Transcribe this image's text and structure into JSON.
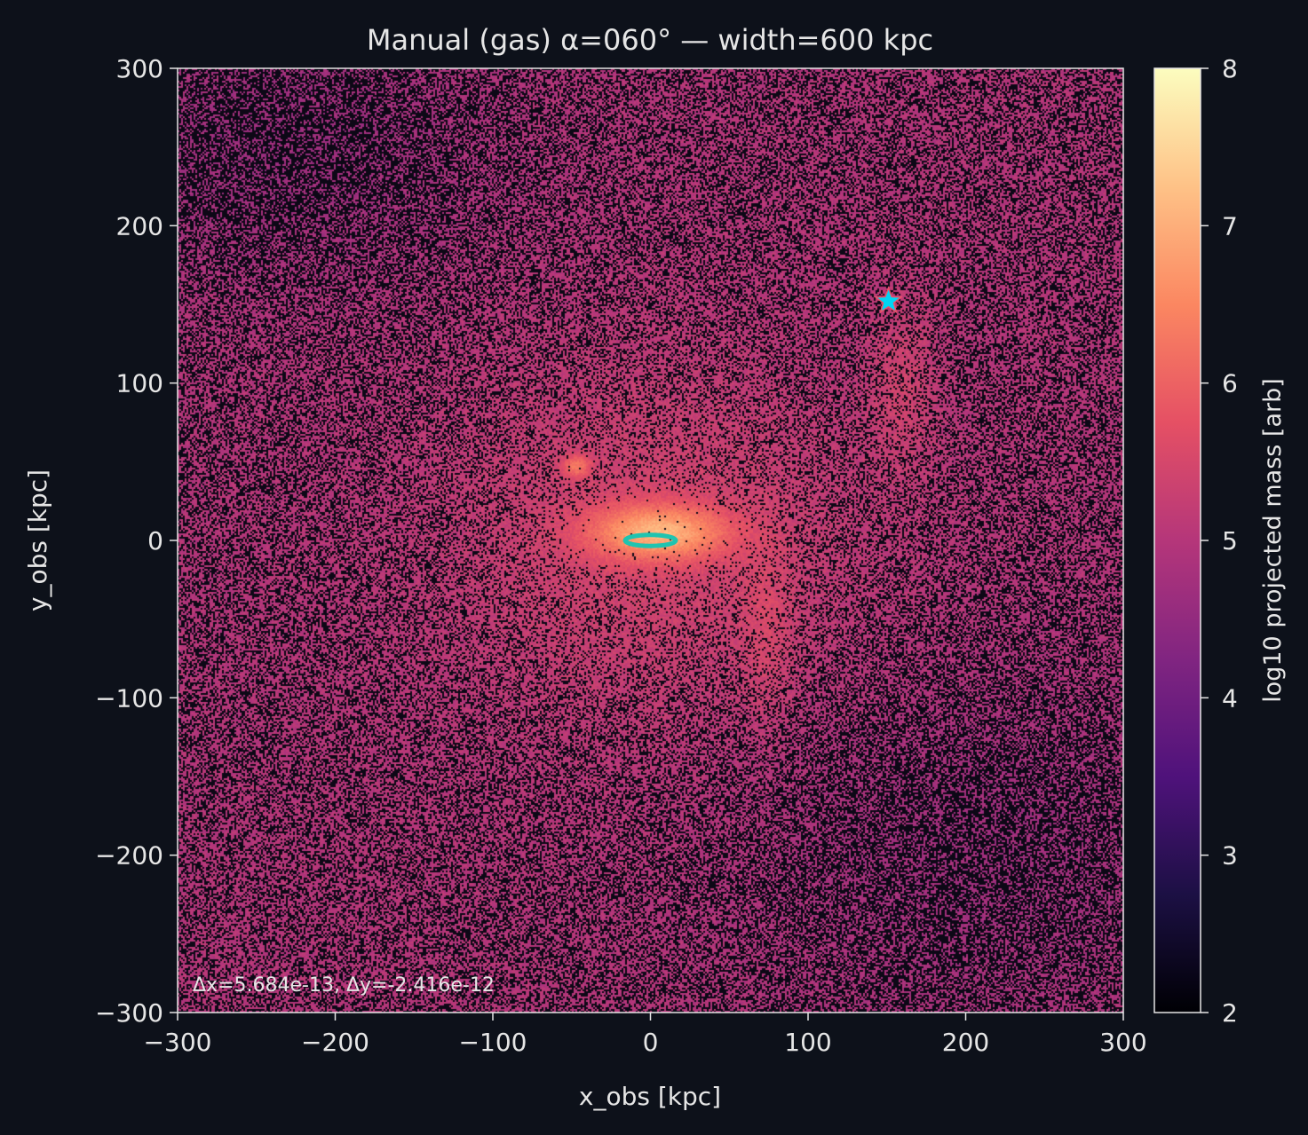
{
  "chart_data": {
    "type": "heatmap",
    "title": "Manual (gas)  α=060°  —  width=600 kpc",
    "xlabel": "x_obs [kpc]",
    "ylabel": "y_obs [kpc]",
    "xlim": [
      -300,
      300
    ],
    "ylim": [
      -300,
      300
    ],
    "xticks": [
      -300,
      -200,
      -100,
      0,
      100,
      200,
      300
    ],
    "yticks": [
      -300,
      -200,
      -100,
      0,
      100,
      200,
      300
    ],
    "xtick_labels": [
      "−300",
      "−200",
      "−100",
      "0",
      "100",
      "200",
      "300"
    ],
    "ytick_labels": [
      "−300",
      "−200",
      "−100",
      "0",
      "100",
      "200",
      "300"
    ],
    "colorbar": {
      "label": "log10 projected mass [arb]",
      "range": [
        2,
        8
      ],
      "ticks": [
        2,
        3,
        4,
        5,
        6,
        7,
        8
      ],
      "tick_labels": [
        "2",
        "3",
        "4",
        "5",
        "6",
        "7",
        "8"
      ],
      "colormap": "magma",
      "stops": [
        "#000004",
        "#1c1044",
        "#4f127b",
        "#812581",
        "#b5367a",
        "#e55064",
        "#fb8761",
        "#fec287",
        "#fcfdbf"
      ]
    },
    "density_components": [
      {
        "type": "background",
        "x": 0,
        "y": 0,
        "level": 5.0
      },
      {
        "type": "halo",
        "x": 0,
        "y": 0,
        "sigma_x": 90,
        "sigma_y": 80,
        "level": 0.45
      },
      {
        "type": "core",
        "x": 5,
        "y": 5,
        "sigma_x": 30,
        "sigma_y": 12,
        "level": 1.7
      },
      {
        "type": "clump",
        "x": -47,
        "y": 47,
        "sigma_x": 6,
        "sigma_y": 5,
        "level": 1.0
      },
      {
        "type": "stream",
        "x": 160,
        "y": 100,
        "sigma_x": 15,
        "sigma_y": 40,
        "level": 0.35
      },
      {
        "type": "stream",
        "x": 75,
        "y": -60,
        "sigma_x": 12,
        "sigma_y": 40,
        "level": 0.3
      },
      {
        "type": "void",
        "x": -230,
        "y": 250,
        "sigma_x": 90,
        "sigma_y": 60,
        "level": -0.35
      },
      {
        "type": "void",
        "x": 210,
        "y": -200,
        "sigma_x": 100,
        "sigma_y": 80,
        "level": -0.3
      }
    ],
    "markers": [
      {
        "type": "ellipse",
        "x": 0,
        "y": 0,
        "rx": 16,
        "ry": 3.5,
        "color": "#1fc4b0"
      },
      {
        "type": "star",
        "x": 151,
        "y": 152,
        "fill": "#00d5f5",
        "edge": "#e8536b"
      }
    ],
    "annotation": "Δx=5.684e-13, Δy=-2.416e-12",
    "colors": {
      "background": "#0d111a",
      "text": "#e6e6e6",
      "axes": "#e6e6e6"
    }
  }
}
